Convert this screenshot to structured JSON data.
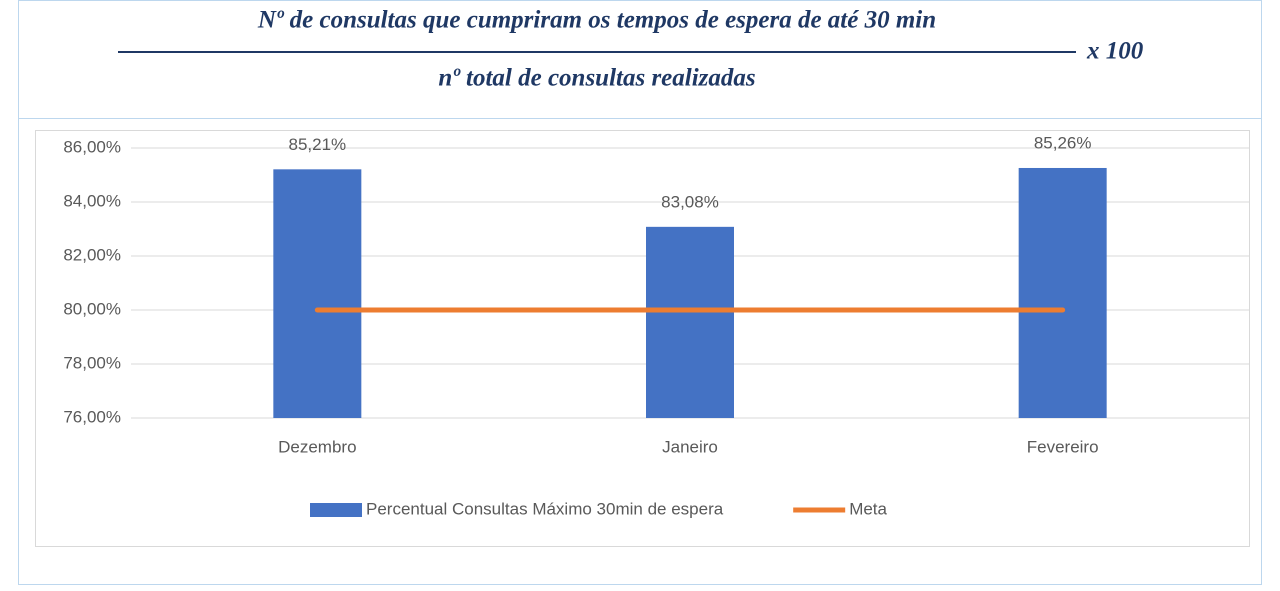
{
  "header": {
    "numerator": "Nº de consultas que cumpriram os tempos de espera de até 30 min",
    "denominator": "nº total de consultas realizadas",
    "multiplier": "x 100"
  },
  "chart_data": {
    "type": "bar",
    "categories": [
      "Dezembro",
      "Janeiro",
      "Fevereiro"
    ],
    "series": [
      {
        "name": "Percentual Consultas Máximo 30min de espera",
        "color": "#4472c4",
        "type": "bar",
        "values": [
          85.21,
          83.08,
          85.26
        ],
        "value_labels": [
          "85,21%",
          "83,08%",
          "85,26%"
        ]
      },
      {
        "name": "Meta",
        "color": "#ed7d31",
        "type": "line",
        "values": [
          80,
          80,
          80
        ]
      }
    ],
    "ylim": [
      76,
      86
    ],
    "yticks": [
      {
        "value": 76,
        "label": "76,00%"
      },
      {
        "value": 78,
        "label": "78,00%"
      },
      {
        "value": 80,
        "label": "80,00%"
      },
      {
        "value": 82,
        "label": "82,00%"
      },
      {
        "value": 84,
        "label": "84,00%"
      },
      {
        "value": 86,
        "label": "86,00%"
      }
    ],
    "grid": true,
    "legend": "bottom"
  }
}
